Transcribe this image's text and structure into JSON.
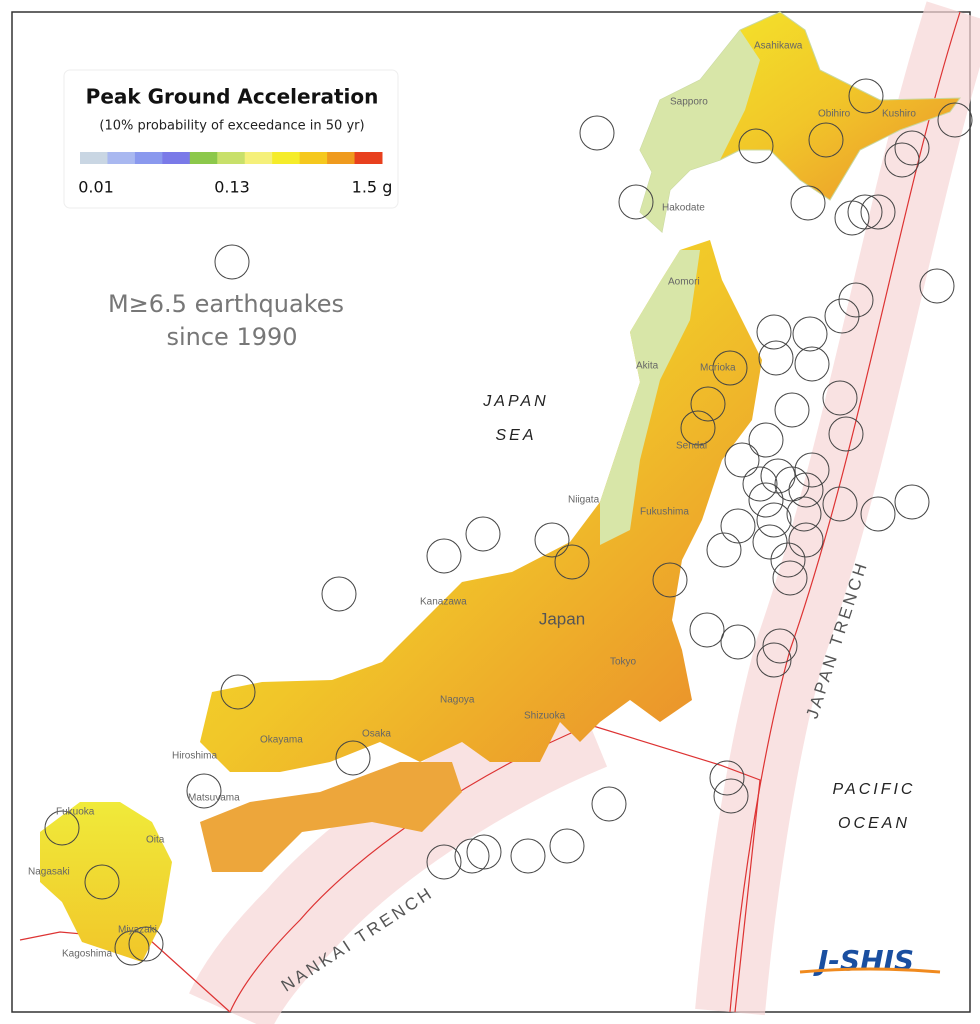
{
  "legend": {
    "title": "Peak Ground Acceleration",
    "subtitle": "(10% probability of exceedance in 50 yr)",
    "colors": [
      "#c9d6e3",
      "#a9b8f0",
      "#8a99ee",
      "#7a7ae8",
      "#8cc84b",
      "#c8e06a",
      "#f5f07a",
      "#f5ec2a",
      "#f5c81e",
      "#ef9a1e",
      "#e8401e"
    ],
    "ticks": [
      "0.01",
      "0.13",
      "1.5 g"
    ]
  },
  "quake_note": [
    "M≥6.5 earthquakes",
    "since 1990"
  ],
  "labels": {
    "japan_sea": [
      "JAPAN",
      "SEA"
    ],
    "pacific_ocean": [
      "PACIFIC",
      "OCEAN"
    ],
    "japan_trench": "JAPAN TRENCH",
    "nankai_trench": "NANKAI TRENCH",
    "country": "Japan"
  },
  "cities": [
    "Asahikawa",
    "Sapporo",
    "Obihiro",
    "Kushiro",
    "Hakodate",
    "Aomori",
    "Akita",
    "Morioka",
    "Sendai",
    "Niigata",
    "Fukushima",
    "Kanazawa",
    "Tokyo",
    "Nagoya",
    "Shizuoka",
    "Osaka",
    "Okayama",
    "Hiroshima",
    "Matsuyama",
    "Fukuoka",
    "Oita",
    "Nagasaki",
    "Miyazaki",
    "Kagoshima"
  ],
  "logo": "J-SHIS"
}
